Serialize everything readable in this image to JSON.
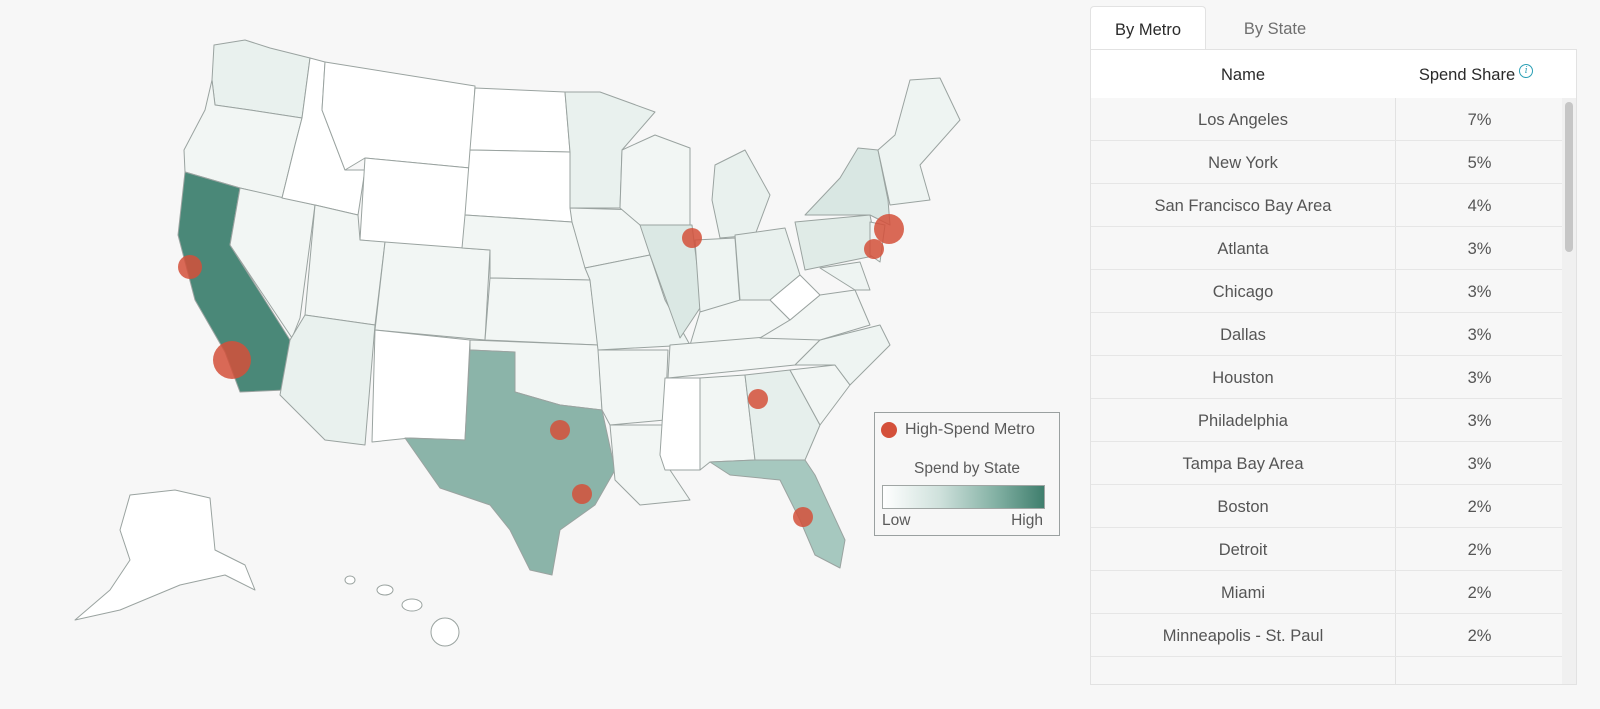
{
  "tabs": [
    {
      "label": "By Metro",
      "active": true
    },
    {
      "label": "By State",
      "active": false
    }
  ],
  "table": {
    "columns": {
      "name": "Name",
      "share": "Spend Share"
    },
    "rows": [
      {
        "name": "Los Angeles",
        "share": "7%"
      },
      {
        "name": "New York",
        "share": "5%"
      },
      {
        "name": "San Francisco Bay Area",
        "share": "4%"
      },
      {
        "name": "Atlanta",
        "share": "3%"
      },
      {
        "name": "Chicago",
        "share": "3%"
      },
      {
        "name": "Dallas",
        "share": "3%"
      },
      {
        "name": "Houston",
        "share": "3%"
      },
      {
        "name": "Philadelphia",
        "share": "3%"
      },
      {
        "name": "Tampa Bay Area",
        "share": "3%"
      },
      {
        "name": "Boston",
        "share": "2%"
      },
      {
        "name": "Detroit",
        "share": "2%"
      },
      {
        "name": "Miami",
        "share": "2%"
      },
      {
        "name": "Minneapolis - St. Paul",
        "share": "2%"
      },
      {
        "name": "",
        "share": ""
      }
    ]
  },
  "legend": {
    "metro_label": "High-Spend Metro",
    "scale_title": "Spend by State",
    "low": "Low",
    "high": "High"
  },
  "colors": {
    "metro_dot": "#d4503a",
    "scale_low": "#ffffff",
    "scale_high": "#3f7e6d",
    "info_icon": "#2a9fb5"
  },
  "icons": {
    "info": "info-circle-icon"
  }
}
